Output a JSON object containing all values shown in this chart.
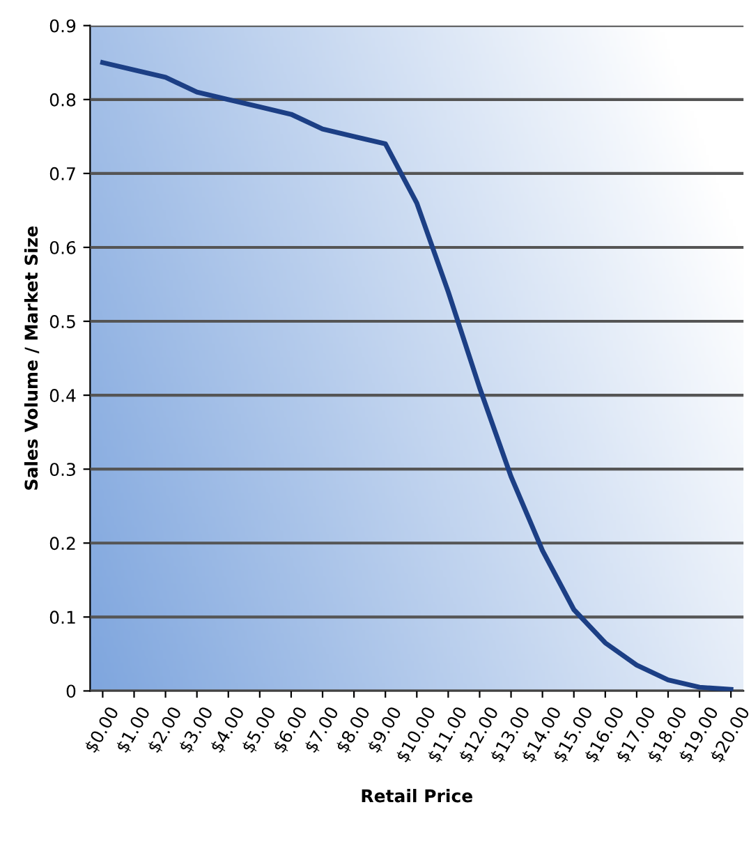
{
  "chart_data": {
    "type": "line",
    "xlabel": "Retail Price",
    "ylabel": "Sales Volume / Market Size",
    "categories": [
      "$0.00",
      "$1.00",
      "$2.00",
      "$3.00",
      "$4.00",
      "$5.00",
      "$6.00",
      "$7.00",
      "$8.00",
      "$9.00",
      "$10.00",
      "$11.00",
      "$12.00",
      "$13.00",
      "$14.00",
      "$15.00",
      "$16.00",
      "$17.00",
      "$18.00",
      "$19.00",
      "$20.00"
    ],
    "series": [
      {
        "color": "#1c3f85",
        "values": [
          0.85,
          0.84,
          0.83,
          0.81,
          0.8,
          0.79,
          0.78,
          0.76,
          0.75,
          0.74,
          0.66,
          0.54,
          0.41,
          0.29,
          0.19,
          0.11,
          0.065,
          0.035,
          0.015,
          0.005,
          0.002
        ]
      }
    ],
    "ylim": [
      0,
      0.9
    ],
    "yticks": [
      0,
      0.1,
      0.2,
      0.3,
      0.4,
      0.5,
      0.6,
      0.7,
      0.8,
      0.9
    ],
    "grid": "y",
    "marker": "none",
    "line_style": "solid",
    "legend": false
  }
}
